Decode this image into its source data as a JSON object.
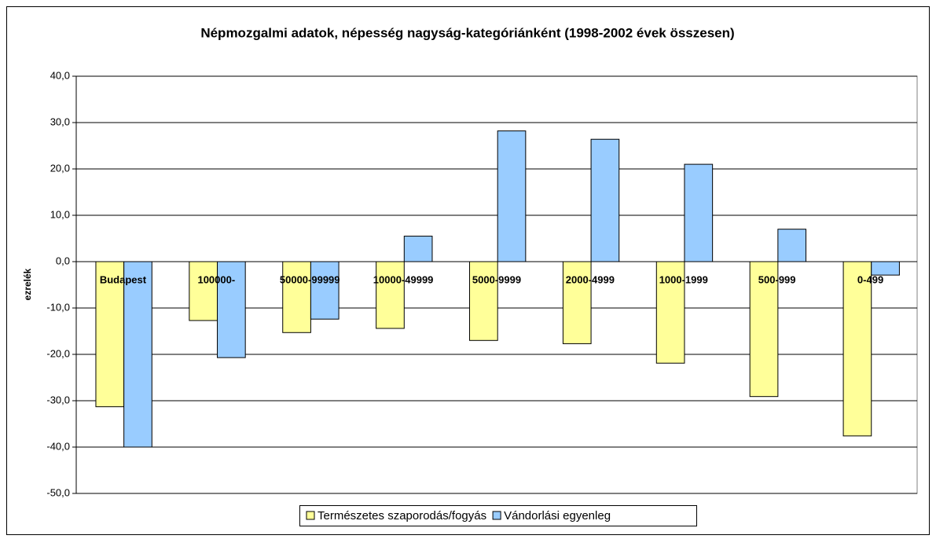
{
  "chart_data": {
    "type": "bar",
    "title": "Népmozgalmi adatok, népesség nagyság-kategóriánként (1998-2002 évek összesen)",
    "y_label": "ezrelék",
    "categories": [
      "Budapest",
      "100000-",
      "50000-99999",
      "10000-49999",
      "5000-9999",
      "2000-4999",
      "1000-1999",
      "500-999",
      "0-499"
    ],
    "series": [
      {
        "name": "Természetes szaporodás/fogyás",
        "color": "#ffff99",
        "values": [
          -31.3,
          -12.7,
          -15.3,
          -14.4,
          -17.0,
          -17.7,
          -21.9,
          -29.1,
          -37.6
        ]
      },
      {
        "name": "Vándorlási egyenleg",
        "color": "#99ccff",
        "values": [
          -40.0,
          -20.7,
          -12.4,
          5.5,
          28.2,
          26.4,
          21.0,
          7.0,
          -2.9
        ]
      }
    ],
    "ylim": [
      -50,
      40
    ],
    "yticks": [
      {
        "value": -50,
        "label": "-50,0"
      },
      {
        "value": -40,
        "label": "-40,0"
      },
      {
        "value": -30,
        "label": "-30,0"
      },
      {
        "value": -20,
        "label": "-20,0"
      },
      {
        "value": -10,
        "label": "-10,0"
      },
      {
        "value": 0,
        "label": "0,0"
      },
      {
        "value": 10,
        "label": "10,0"
      },
      {
        "value": 20,
        "label": "20,0"
      },
      {
        "value": 30,
        "label": "30,0"
      },
      {
        "value": 40,
        "label": "40,0"
      }
    ],
    "grid": true,
    "legend": "bottom"
  }
}
